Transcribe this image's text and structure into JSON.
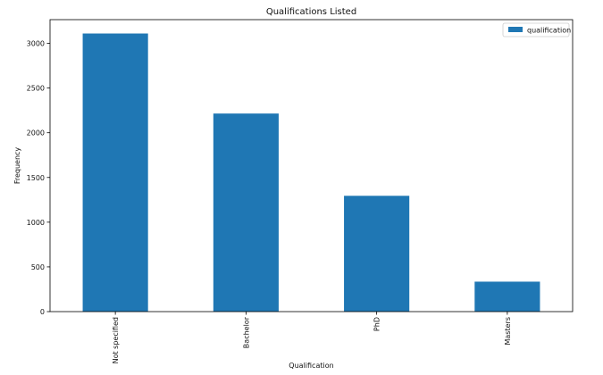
{
  "chart_data": {
    "type": "bar",
    "title": "Qualifications Listed",
    "xlabel": "Qualification",
    "ylabel": "Frequency",
    "categories": [
      "Not specified",
      "Bachelor",
      "PhD",
      "Masters"
    ],
    "series": [
      {
        "name": "qualification",
        "values": [
          3110,
          2215,
          1295,
          335
        ]
      }
    ],
    "ylim": [
      0,
      3265
    ],
    "yticks": [
      0,
      500,
      1000,
      1500,
      2000,
      2500,
      3000
    ],
    "legend": "top-right",
    "grid": false,
    "bar_color": "#1f77b4",
    "axis_color": "#000000"
  }
}
